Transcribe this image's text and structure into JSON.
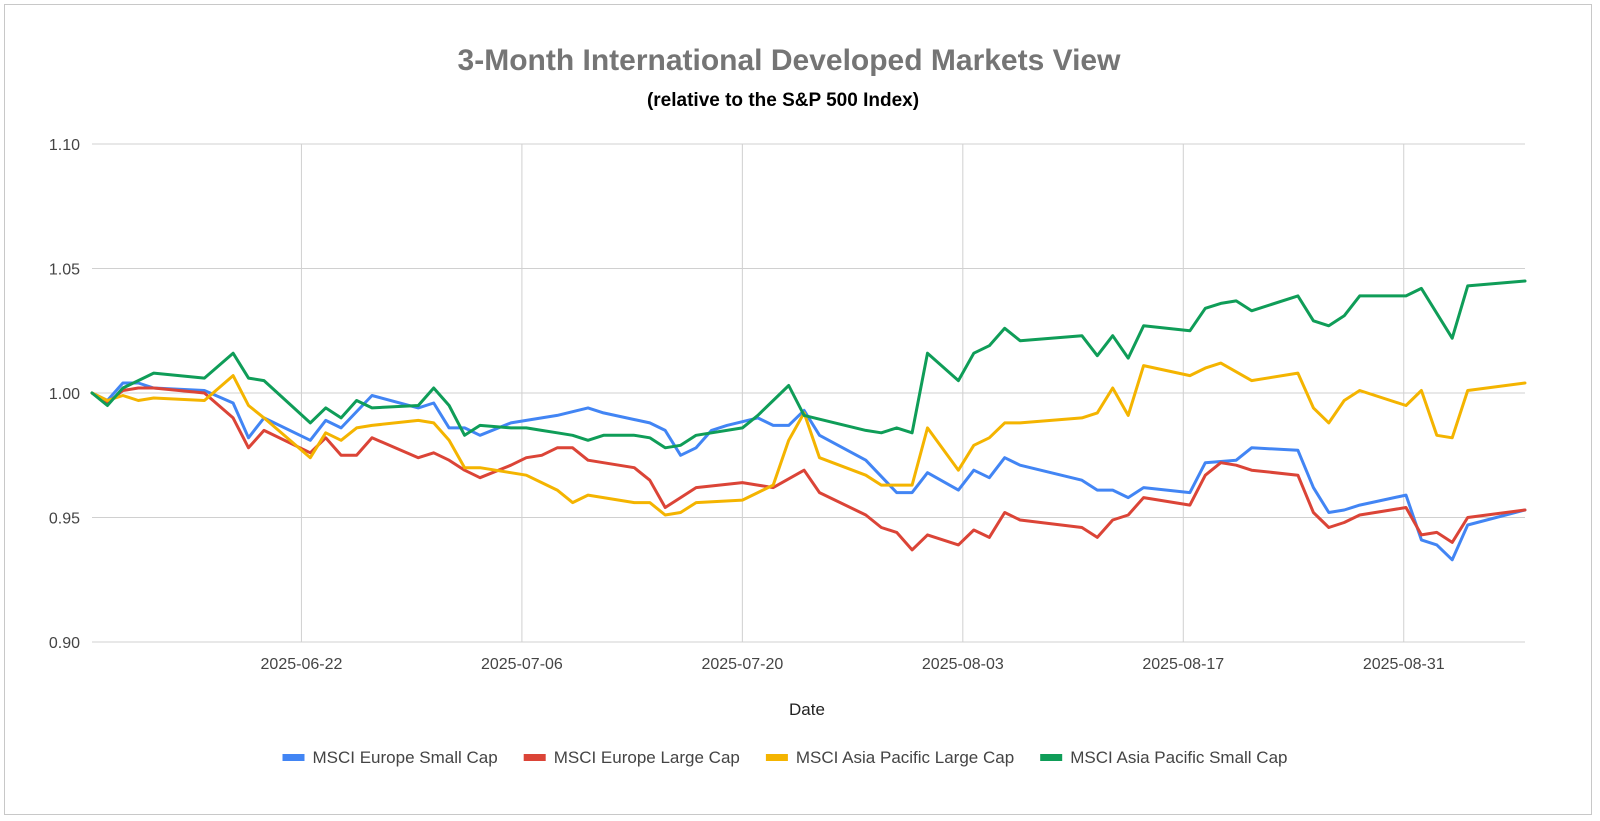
{
  "chart_data": {
    "type": "line",
    "title": "3-Month International Developed Markets View",
    "subtitle": "(relative to the S&P 500 Index)",
    "xlabel": "Date",
    "ylabel": "",
    "ylim": [
      0.9,
      1.1
    ],
    "yticks": [
      "0.90",
      "0.95",
      "1.00",
      "1.05",
      "1.10"
    ],
    "ytick_values": [
      0.9,
      0.95,
      1.0,
      1.05,
      1.1
    ],
    "x_range": [
      0,
      65
    ],
    "xticks": [
      {
        "label": "2025-06-22",
        "x": 9.5
      },
      {
        "label": "2025-07-06",
        "x": 19.5
      },
      {
        "label": "2025-07-20",
        "x": 29.5
      },
      {
        "label": "2025-08-03",
        "x": 39.5
      },
      {
        "label": "2025-08-17",
        "x": 49.5
      },
      {
        "label": "2025-08-31",
        "x": 59.5
      }
    ],
    "legend_position": "bottom",
    "grid": true,
    "series": [
      {
        "name": "MSCI Europe Small Cap",
        "color": "#4285f4",
        "points": [
          [
            0,
            1.0
          ],
          [
            0.7,
            0.997
          ],
          [
            1.4,
            1.004
          ],
          [
            2.1,
            1.004
          ],
          [
            2.8,
            1.002
          ],
          [
            5.1,
            1.001
          ],
          [
            6.4,
            0.996
          ],
          [
            7.1,
            0.982
          ],
          [
            7.8,
            0.99
          ],
          [
            9.9,
            0.981
          ],
          [
            10.6,
            0.989
          ],
          [
            11.3,
            0.986
          ],
          [
            12.7,
            0.999
          ],
          [
            14.8,
            0.994
          ],
          [
            15.5,
            0.996
          ],
          [
            16.2,
            0.986
          ],
          [
            16.9,
            0.986
          ],
          [
            17.6,
            0.983
          ],
          [
            19.0,
            0.988
          ],
          [
            20.4,
            0.99
          ],
          [
            21.1,
            0.991
          ],
          [
            22.5,
            0.994
          ],
          [
            23.2,
            0.992
          ],
          [
            25.3,
            0.988
          ],
          [
            26.0,
            0.985
          ],
          [
            26.7,
            0.975
          ],
          [
            27.4,
            0.978
          ],
          [
            28.1,
            0.985
          ],
          [
            28.8,
            0.987
          ],
          [
            30.2,
            0.99
          ],
          [
            30.9,
            0.987
          ],
          [
            31.6,
            0.987
          ],
          [
            32.3,
            0.993
          ],
          [
            33.0,
            0.983
          ],
          [
            35.1,
            0.973
          ],
          [
            36.5,
            0.96
          ],
          [
            37.2,
            0.96
          ],
          [
            37.9,
            0.968
          ],
          [
            39.3,
            0.961
          ],
          [
            40.0,
            0.969
          ],
          [
            40.7,
            0.966
          ],
          [
            41.4,
            0.974
          ],
          [
            42.1,
            0.971
          ],
          [
            44.9,
            0.965
          ],
          [
            45.6,
            0.961
          ],
          [
            46.3,
            0.961
          ],
          [
            47.0,
            0.958
          ],
          [
            47.7,
            0.962
          ],
          [
            49.8,
            0.96
          ],
          [
            50.5,
            0.972
          ],
          [
            51.9,
            0.973
          ],
          [
            52.6,
            0.978
          ],
          [
            54.7,
            0.977
          ],
          [
            55.4,
            0.962
          ],
          [
            56.1,
            0.952
          ],
          [
            56.8,
            0.953
          ],
          [
            57.5,
            0.955
          ],
          [
            59.6,
            0.959
          ],
          [
            60.3,
            0.941
          ],
          [
            61.0,
            0.939
          ],
          [
            61.7,
            0.933
          ],
          [
            62.4,
            0.947
          ],
          [
            65.0,
            0.953
          ]
        ]
      },
      {
        "name": "MSCI Europe Large Cap",
        "color": "#db4437",
        "points": [
          [
            0,
            1.0
          ],
          [
            0.7,
            0.996
          ],
          [
            1.4,
            1.001
          ],
          [
            2.1,
            1.002
          ],
          [
            2.8,
            1.002
          ],
          [
            5.1,
            1.0
          ],
          [
            6.4,
            0.99
          ],
          [
            7.1,
            0.978
          ],
          [
            7.8,
            0.985
          ],
          [
            9.9,
            0.976
          ],
          [
            10.6,
            0.982
          ],
          [
            11.3,
            0.975
          ],
          [
            12.0,
            0.975
          ],
          [
            12.7,
            0.982
          ],
          [
            14.8,
            0.974
          ],
          [
            15.5,
            0.976
          ],
          [
            16.2,
            0.973
          ],
          [
            16.9,
            0.969
          ],
          [
            17.6,
            0.966
          ],
          [
            19.0,
            0.971
          ],
          [
            19.7,
            0.974
          ],
          [
            20.4,
            0.975
          ],
          [
            21.1,
            0.978
          ],
          [
            21.8,
            0.978
          ],
          [
            22.5,
            0.973
          ],
          [
            24.6,
            0.97
          ],
          [
            25.3,
            0.965
          ],
          [
            26.0,
            0.954
          ],
          [
            26.7,
            0.958
          ],
          [
            27.4,
            0.962
          ],
          [
            29.5,
            0.964
          ],
          [
            30.2,
            0.963
          ],
          [
            30.9,
            0.962
          ],
          [
            32.3,
            0.969
          ],
          [
            33.0,
            0.96
          ],
          [
            35.1,
            0.951
          ],
          [
            35.8,
            0.946
          ],
          [
            36.5,
            0.944
          ],
          [
            37.2,
            0.937
          ],
          [
            37.9,
            0.943
          ],
          [
            39.3,
            0.939
          ],
          [
            40.0,
            0.945
          ],
          [
            40.7,
            0.942
          ],
          [
            41.4,
            0.952
          ],
          [
            42.1,
            0.949
          ],
          [
            44.9,
            0.946
          ],
          [
            45.6,
            0.942
          ],
          [
            46.3,
            0.949
          ],
          [
            47.0,
            0.951
          ],
          [
            47.7,
            0.958
          ],
          [
            49.8,
            0.955
          ],
          [
            50.5,
            0.967
          ],
          [
            51.2,
            0.972
          ],
          [
            51.9,
            0.971
          ],
          [
            52.6,
            0.969
          ],
          [
            54.7,
            0.967
          ],
          [
            55.4,
            0.952
          ],
          [
            56.1,
            0.946
          ],
          [
            56.8,
            0.948
          ],
          [
            57.5,
            0.951
          ],
          [
            59.6,
            0.954
          ],
          [
            60.3,
            0.943
          ],
          [
            61.0,
            0.944
          ],
          [
            61.7,
            0.94
          ],
          [
            62.4,
            0.95
          ],
          [
            65.0,
            0.953
          ]
        ]
      },
      {
        "name": "MSCI Asia Pacific Large Cap",
        "color": "#f4b400",
        "points": [
          [
            0,
            1.0
          ],
          [
            0.7,
            0.997
          ],
          [
            1.4,
            0.999
          ],
          [
            2.1,
            0.997
          ],
          [
            2.8,
            0.998
          ],
          [
            5.1,
            0.997
          ],
          [
            6.4,
            1.007
          ],
          [
            7.1,
            0.995
          ],
          [
            7.8,
            0.99
          ],
          [
            9.9,
            0.974
          ],
          [
            10.6,
            0.984
          ],
          [
            11.3,
            0.981
          ],
          [
            12.0,
            0.986
          ],
          [
            12.7,
            0.987
          ],
          [
            14.8,
            0.989
          ],
          [
            15.5,
            0.988
          ],
          [
            16.2,
            0.981
          ],
          [
            16.9,
            0.97
          ],
          [
            17.6,
            0.97
          ],
          [
            19.0,
            0.968
          ],
          [
            19.7,
            0.967
          ],
          [
            20.4,
            0.964
          ],
          [
            21.1,
            0.961
          ],
          [
            21.8,
            0.956
          ],
          [
            22.5,
            0.959
          ],
          [
            24.6,
            0.956
          ],
          [
            25.3,
            0.956
          ],
          [
            26.0,
            0.951
          ],
          [
            26.7,
            0.952
          ],
          [
            27.4,
            0.956
          ],
          [
            29.5,
            0.957
          ],
          [
            30.2,
            0.96
          ],
          [
            30.9,
            0.963
          ],
          [
            31.6,
            0.981
          ],
          [
            32.3,
            0.992
          ],
          [
            33.0,
            0.974
          ],
          [
            35.1,
            0.967
          ],
          [
            35.8,
            0.963
          ],
          [
            36.5,
            0.963
          ],
          [
            37.2,
            0.963
          ],
          [
            37.9,
            0.986
          ],
          [
            39.3,
            0.969
          ],
          [
            40.0,
            0.979
          ],
          [
            40.7,
            0.982
          ],
          [
            41.4,
            0.988
          ],
          [
            42.1,
            0.988
          ],
          [
            44.9,
            0.99
          ],
          [
            45.6,
            0.992
          ],
          [
            46.3,
            1.002
          ],
          [
            47.0,
            0.991
          ],
          [
            47.7,
            1.011
          ],
          [
            49.8,
            1.007
          ],
          [
            50.5,
            1.01
          ],
          [
            51.2,
            1.012
          ],
          [
            52.6,
            1.005
          ],
          [
            54.7,
            1.008
          ],
          [
            55.4,
            0.994
          ],
          [
            56.1,
            0.988
          ],
          [
            56.8,
            0.997
          ],
          [
            57.5,
            1.001
          ],
          [
            59.6,
            0.995
          ],
          [
            60.3,
            1.001
          ],
          [
            61.0,
            0.983
          ],
          [
            61.7,
            0.982
          ],
          [
            62.4,
            1.001
          ],
          [
            65.0,
            1.004
          ]
        ]
      },
      {
        "name": "MSCI Asia Pacific Small Cap",
        "color": "#0f9d58",
        "points": [
          [
            0,
            1.0
          ],
          [
            0.7,
            0.995
          ],
          [
            1.4,
            1.002
          ],
          [
            2.1,
            1.005
          ],
          [
            2.8,
            1.008
          ],
          [
            5.1,
            1.006
          ],
          [
            6.4,
            1.016
          ],
          [
            7.1,
            1.006
          ],
          [
            7.8,
            1.005
          ],
          [
            9.9,
            0.988
          ],
          [
            10.6,
            0.994
          ],
          [
            11.3,
            0.99
          ],
          [
            12.0,
            0.997
          ],
          [
            12.7,
            0.994
          ],
          [
            14.8,
            0.995
          ],
          [
            15.5,
            1.002
          ],
          [
            16.2,
            0.995
          ],
          [
            16.9,
            0.983
          ],
          [
            17.6,
            0.987
          ],
          [
            19.0,
            0.986
          ],
          [
            19.7,
            0.986
          ],
          [
            20.4,
            0.985
          ],
          [
            21.1,
            0.984
          ],
          [
            21.8,
            0.983
          ],
          [
            22.5,
            0.981
          ],
          [
            23.2,
            0.983
          ],
          [
            24.6,
            0.983
          ],
          [
            25.3,
            0.982
          ],
          [
            26.0,
            0.978
          ],
          [
            26.7,
            0.979
          ],
          [
            27.4,
            0.983
          ],
          [
            29.5,
            0.986
          ],
          [
            30.2,
            0.991
          ],
          [
            30.9,
            0.997
          ],
          [
            31.6,
            1.003
          ],
          [
            32.3,
            0.991
          ],
          [
            35.1,
            0.985
          ],
          [
            35.8,
            0.984
          ],
          [
            36.5,
            0.986
          ],
          [
            37.2,
            0.984
          ],
          [
            37.9,
            1.016
          ],
          [
            39.3,
            1.005
          ],
          [
            40.0,
            1.016
          ],
          [
            40.7,
            1.019
          ],
          [
            41.4,
            1.026
          ],
          [
            42.1,
            1.021
          ],
          [
            44.9,
            1.023
          ],
          [
            45.6,
            1.015
          ],
          [
            46.3,
            1.023
          ],
          [
            47.0,
            1.014
          ],
          [
            47.7,
            1.027
          ],
          [
            49.8,
            1.025
          ],
          [
            50.5,
            1.034
          ],
          [
            51.2,
            1.036
          ],
          [
            51.9,
            1.037
          ],
          [
            52.6,
            1.033
          ],
          [
            54.7,
            1.039
          ],
          [
            55.4,
            1.029
          ],
          [
            56.1,
            1.027
          ],
          [
            56.8,
            1.031
          ],
          [
            57.5,
            1.039
          ],
          [
            59.6,
            1.039
          ],
          [
            60.3,
            1.042
          ],
          [
            61.0,
            1.032
          ],
          [
            61.7,
            1.022
          ],
          [
            62.4,
            1.043
          ],
          [
            65.0,
            1.045
          ]
        ]
      }
    ]
  }
}
